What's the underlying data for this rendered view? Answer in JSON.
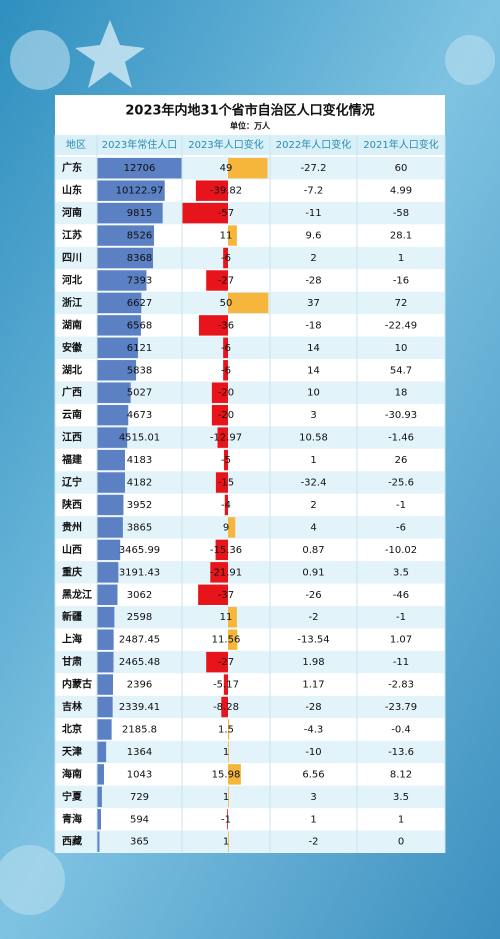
{
  "header": {
    "title": "2023年内地31个省市自治区人口变化情况",
    "unit": "单位：万人"
  },
  "table": {
    "columns": [
      "地区",
      "2023年常住人口",
      "2023年人口变化",
      "2022年人口变化",
      "2021年人口变化"
    ],
    "rows": [
      [
        "广东",
        12706,
        49,
        -27.2,
        60
      ],
      [
        "山东",
        10122.97,
        -39.82,
        -7.2,
        4.99
      ],
      [
        "河南",
        9815,
        -57,
        -11,
        -58
      ],
      [
        "江苏",
        8526,
        11,
        9.6,
        28.1
      ],
      [
        "四川",
        8368,
        -6,
        2,
        1
      ],
      [
        "河北",
        7393,
        -27,
        -28,
        -16
      ],
      [
        "浙江",
        6627,
        50,
        37,
        72
      ],
      [
        "湖南",
        6568,
        -36,
        -18,
        -22.49
      ],
      [
        "安徽",
        6121,
        -6,
        14,
        10
      ],
      [
        "湖北",
        5838,
        -6,
        14,
        54.7
      ],
      [
        "广西",
        5027,
        -20,
        10,
        18
      ],
      [
        "云南",
        4673,
        -20,
        3,
        -30.93
      ],
      [
        "江西",
        4515.01,
        -12.97,
        10.58,
        -1.46
      ],
      [
        "福建",
        4183,
        -5,
        1,
        26
      ],
      [
        "辽宁",
        4182,
        -15,
        -32.4,
        -25.6
      ],
      [
        "陕西",
        3952,
        -4,
        2,
        -1
      ],
      [
        "贵州",
        3865,
        9,
        4,
        -6
      ],
      [
        "山西",
        3465.99,
        -15.36,
        0.87,
        -10.02
      ],
      [
        "重庆",
        3191.43,
        -21.91,
        0.91,
        3.5
      ],
      [
        "黑龙江",
        3062,
        -37,
        -26,
        -46
      ],
      [
        "新疆",
        2598,
        11,
        -2,
        -1
      ],
      [
        "上海",
        2487.45,
        11.56,
        -13.54,
        1.07
      ],
      [
        "甘肃",
        2465.48,
        -27,
        1.98,
        -11
      ],
      [
        "内蒙古",
        2396,
        -5.17,
        1.17,
        -2.83
      ],
      [
        "吉林",
        2339.41,
        -8.28,
        -28,
        -23.79
      ],
      [
        "北京",
        2185.8,
        1.5,
        -4.3,
        -0.4
      ],
      [
        "天津",
        1364,
        1,
        -10,
        -13.6
      ],
      [
        "海南",
        1043,
        15.98,
        6.56,
        8.12
      ],
      [
        "宁夏",
        729,
        1,
        3,
        3.5
      ],
      [
        "青海",
        594,
        -1,
        1,
        1
      ],
      [
        "西藏",
        365,
        1,
        -2,
        0
      ]
    ]
  }
}
